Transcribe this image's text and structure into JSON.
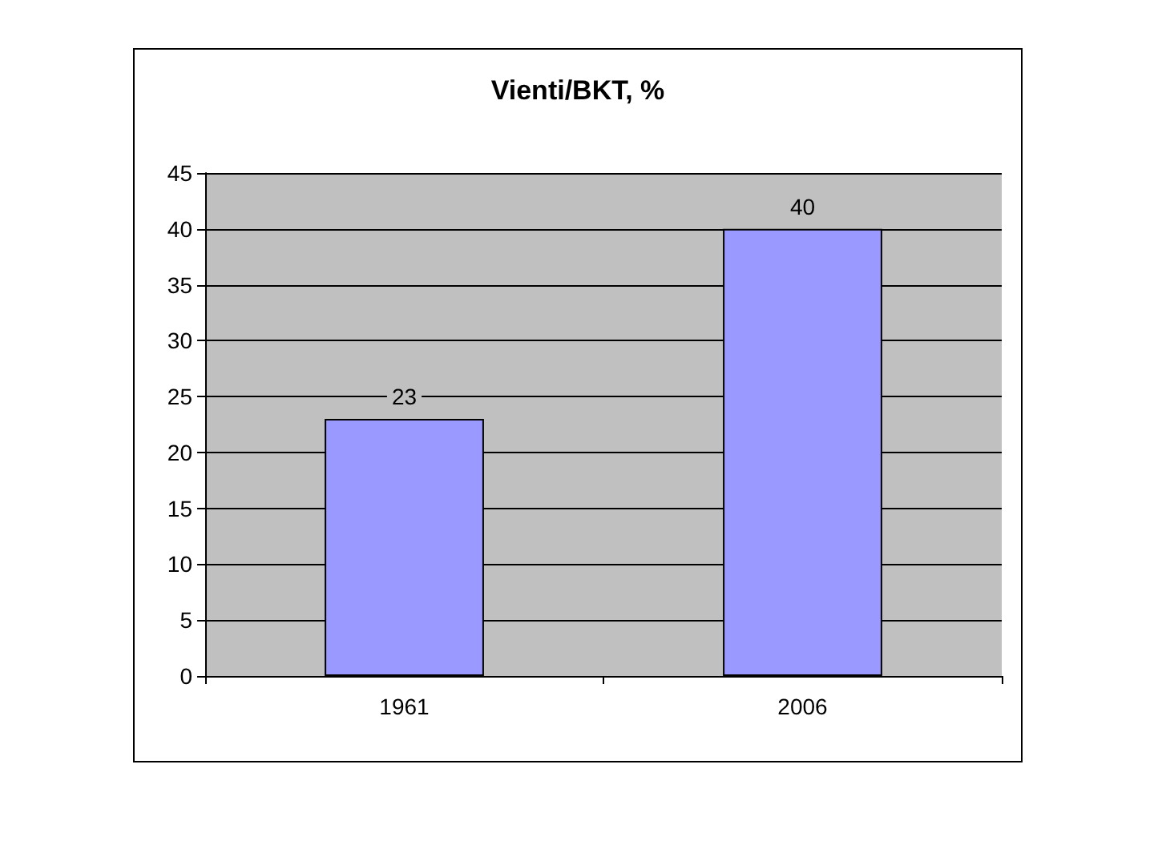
{
  "chart_data": {
    "type": "bar",
    "title": "Vienti/BKT, %",
    "categories": [
      "1961",
      "2006"
    ],
    "values": [
      23,
      40
    ],
    "color": "#9999ff",
    "ylim": [
      0,
      45
    ],
    "yticks": [
      0,
      5,
      10,
      15,
      20,
      25,
      30,
      35,
      40,
      45
    ],
    "grid": "y",
    "data_labels": true
  }
}
